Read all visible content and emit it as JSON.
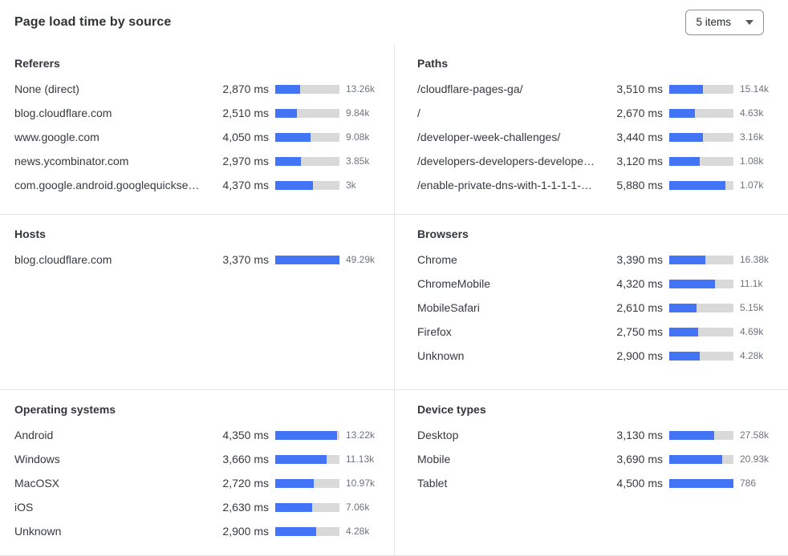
{
  "header": {
    "title": "Page load time by source",
    "dropdown": {
      "value": "5 items"
    }
  },
  "colors": {
    "bar_fill": "#4274f5",
    "bar_track": "#d9d9d9",
    "divider": "#e4e4e6",
    "count_text": "#6f747c",
    "label_text": "#36393e"
  },
  "panels": [
    {
      "key": "referers",
      "title": "Referers",
      "rows": [
        {
          "label": "None (direct)",
          "ms": "2,870 ms",
          "count": "13.26k",
          "pct": 39
        },
        {
          "label": "blog.cloudflare.com",
          "ms": "2,510 ms",
          "count": "9.84k",
          "pct": 34
        },
        {
          "label": "www.google.com",
          "ms": "4,050 ms",
          "count": "9.08k",
          "pct": 55
        },
        {
          "label": "news.ycombinator.com",
          "ms": "2,970 ms",
          "count": "3.85k",
          "pct": 40
        },
        {
          "label": "com.google.android.googlequicksearc...",
          "ms": "4,370 ms",
          "count": "3k",
          "pct": 59
        }
      ]
    },
    {
      "key": "paths",
      "title": "Paths",
      "rows": [
        {
          "label": "/cloudflare-pages-ga/",
          "ms": "3,510 ms",
          "count": "15.14k",
          "pct": 53
        },
        {
          "label": "/",
          "ms": "2,670 ms",
          "count": "4.63k",
          "pct": 40
        },
        {
          "label": "/developer-week-challenges/",
          "ms": "3,440 ms",
          "count": "3.16k",
          "pct": 52
        },
        {
          "label": "/developers-developers-developers/",
          "ms": "3,120 ms",
          "count": "1.08k",
          "pct": 47
        },
        {
          "label": "/enable-private-dns-with-1-1-1-1-on-...",
          "ms": "5,880 ms",
          "count": "1.07k",
          "pct": 88
        }
      ]
    },
    {
      "key": "hosts",
      "title": "Hosts",
      "rows": [
        {
          "label": "blog.cloudflare.com",
          "ms": "3,370 ms",
          "count": "49.29k",
          "pct": 100
        }
      ]
    },
    {
      "key": "browsers",
      "title": "Browsers",
      "rows": [
        {
          "label": "Chrome",
          "ms": "3,390 ms",
          "count": "16.38k",
          "pct": 56
        },
        {
          "label": "ChromeMobile",
          "ms": "4,320 ms",
          "count": "11.1k",
          "pct": 71
        },
        {
          "label": "MobileSafari",
          "ms": "2,610 ms",
          "count": "5.15k",
          "pct": 43
        },
        {
          "label": "Firefox",
          "ms": "2,750 ms",
          "count": "4.69k",
          "pct": 45
        },
        {
          "label": "Unknown",
          "ms": "2,900 ms",
          "count": "4.28k",
          "pct": 48
        }
      ]
    },
    {
      "key": "operating-systems",
      "title": "Operating systems",
      "rows": [
        {
          "label": "Android",
          "ms": "4,350 ms",
          "count": "13.22k",
          "pct": 96
        },
        {
          "label": "Windows",
          "ms": "3,660 ms",
          "count": "11.13k",
          "pct": 80
        },
        {
          "label": "MacOSX",
          "ms": "2,720 ms",
          "count": "10.97k",
          "pct": 60
        },
        {
          "label": "iOS",
          "ms": "2,630 ms",
          "count": "7.06k",
          "pct": 58
        },
        {
          "label": "Unknown",
          "ms": "2,900 ms",
          "count": "4.28k",
          "pct": 64
        }
      ]
    },
    {
      "key": "device-types",
      "title": "Device types",
      "rows": [
        {
          "label": "Desktop",
          "ms": "3,130 ms",
          "count": "27.58k",
          "pct": 70
        },
        {
          "label": "Mobile",
          "ms": "3,690 ms",
          "count": "20.93k",
          "pct": 82
        },
        {
          "label": "Tablet",
          "ms": "4,500 ms",
          "count": "786",
          "pct": 100
        }
      ]
    }
  ],
  "chart_data": [
    {
      "type": "bar",
      "title": "Referers",
      "unit": "ms",
      "categories": [
        "None (direct)",
        "blog.cloudflare.com",
        "www.google.com",
        "news.ycombinator.com",
        "com.google.android.googlequicksearc..."
      ],
      "values_ms": [
        2870,
        2510,
        4050,
        2970,
        4370
      ],
      "counts": [
        13260,
        9840,
        9080,
        3850,
        3000
      ]
    },
    {
      "type": "bar",
      "title": "Paths",
      "unit": "ms",
      "categories": [
        "/cloudflare-pages-ga/",
        "/",
        "/developer-week-challenges/",
        "/developers-developers-developers/",
        "/enable-private-dns-with-1-1-1-1-on-..."
      ],
      "values_ms": [
        3510,
        2670,
        3440,
        3120,
        5880
      ],
      "counts": [
        15140,
        4630,
        3160,
        1080,
        1070
      ]
    },
    {
      "type": "bar",
      "title": "Hosts",
      "unit": "ms",
      "categories": [
        "blog.cloudflare.com"
      ],
      "values_ms": [
        3370
      ],
      "counts": [
        49290
      ]
    },
    {
      "type": "bar",
      "title": "Browsers",
      "unit": "ms",
      "categories": [
        "Chrome",
        "ChromeMobile",
        "MobileSafari",
        "Firefox",
        "Unknown"
      ],
      "values_ms": [
        3390,
        4320,
        2610,
        2750,
        2900
      ],
      "counts": [
        16380,
        11100,
        5150,
        4690,
        4280
      ]
    },
    {
      "type": "bar",
      "title": "Operating systems",
      "unit": "ms",
      "categories": [
        "Android",
        "Windows",
        "MacOSX",
        "iOS",
        "Unknown"
      ],
      "values_ms": [
        4350,
        3660,
        2720,
        2630,
        2900
      ],
      "counts": [
        13220,
        11130,
        10970,
        7060,
        4280
      ]
    },
    {
      "type": "bar",
      "title": "Device types",
      "unit": "ms",
      "categories": [
        "Desktop",
        "Mobile",
        "Tablet"
      ],
      "values_ms": [
        3130,
        3690,
        4500
      ],
      "counts": [
        27580,
        20930,
        786
      ]
    }
  ]
}
